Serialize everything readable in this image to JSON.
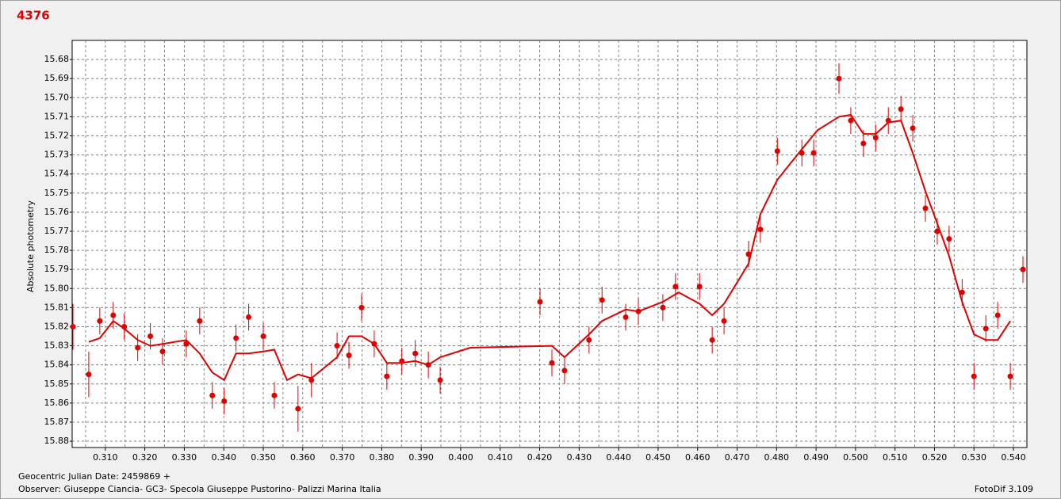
{
  "chart_data": {
    "type": "scatter",
    "title": "4376",
    "ylabel": "Absolute photometry",
    "xlabel": "Geocentric Julian Date: 2459869 +",
    "annotations": [
      "Observer: Giuseppe Ciancia- GC3- Specola Giuseppe Pustorino- Palizzi Marina Italia",
      "FotoDif 3.109"
    ],
    "xlim": [
      0.3016,
      0.5434
    ],
    "ylim": [
      15.67,
      15.8833
    ],
    "y_inverted": true,
    "grid": true,
    "xticks": [
      {
        "value": 0.31,
        "label": "0.310"
      },
      {
        "value": 0.32,
        "label": "0.320"
      },
      {
        "value": 0.33,
        "label": "0.330"
      },
      {
        "value": 0.34,
        "label": "0.340"
      },
      {
        "value": 0.35,
        "label": "0.350"
      },
      {
        "value": 0.36,
        "label": "0.360"
      },
      {
        "value": 0.37,
        "label": "0.370"
      },
      {
        "value": 0.38,
        "label": "0.380"
      },
      {
        "value": 0.39,
        "label": "0.390"
      },
      {
        "value": 0.4,
        "label": "0.400"
      },
      {
        "value": 0.41,
        "label": "0.410"
      },
      {
        "value": 0.42,
        "label": "0.420"
      },
      {
        "value": 0.43,
        "label": "0.430"
      },
      {
        "value": 0.44,
        "label": "0.440"
      },
      {
        "value": 0.45,
        "label": "0.450"
      },
      {
        "value": 0.46,
        "label": "0.460"
      },
      {
        "value": 0.47,
        "label": "0.470"
      },
      {
        "value": 0.48,
        "label": "0.480"
      },
      {
        "value": 0.49,
        "label": "0.490"
      },
      {
        "value": 0.5,
        "label": "0.500"
      },
      {
        "value": 0.51,
        "label": "0.510"
      },
      {
        "value": 0.52,
        "label": "0.520"
      },
      {
        "value": 0.53,
        "label": "0.530"
      },
      {
        "value": 0.54,
        "label": "0.540"
      }
    ],
    "yticks": [
      15.68,
      15.69,
      {
        "value": 15.7,
        "label": "15.70"
      },
      15.71,
      15.72,
      15.73,
      15.74,
      15.75,
      15.76,
      15.77,
      15.78,
      15.79,
      {
        "value": 15.8,
        "label": "15.80"
      },
      15.81,
      15.82,
      15.83,
      15.84,
      15.85,
      15.86,
      15.87,
      15.88
    ],
    "series": [
      {
        "type": "scatter",
        "color": "#e00000",
        "x": [
          0.3018,
          0.3058,
          0.3086,
          0.312,
          0.3148,
          0.3182,
          0.3214,
          0.3245,
          0.3305,
          0.3339,
          0.3371,
          0.3401,
          0.3431,
          0.3463,
          0.35,
          0.3528,
          0.3588,
          0.3622,
          0.3687,
          0.3717,
          0.3749,
          0.3781,
          0.3813,
          0.3851,
          0.3885,
          0.3918,
          0.3948,
          0.4201,
          0.4231,
          0.4263,
          0.4325,
          0.4358,
          0.4418,
          0.445,
          0.4512,
          0.4544,
          0.4605,
          0.4637,
          0.4667,
          0.4729,
          0.4759,
          0.4802,
          0.4864,
          0.4894,
          0.4958,
          0.4988,
          0.502,
          0.5051,
          0.5083,
          0.5115,
          0.5145,
          0.5177,
          0.5207,
          0.5237,
          0.527,
          0.53,
          0.533,
          0.536,
          0.5392,
          0.5424
        ],
        "values": [
          15.82,
          15.845,
          15.817,
          15.814,
          15.82,
          15.831,
          15.825,
          15.833,
          15.829,
          15.817,
          15.856,
          15.859,
          15.826,
          15.815,
          15.825,
          15.856,
          15.863,
          15.848,
          15.83,
          15.835,
          15.81,
          15.829,
          15.846,
          15.838,
          15.834,
          15.84,
          15.848,
          15.807,
          15.839,
          15.843,
          15.827,
          15.806,
          15.815,
          15.812,
          15.81,
          15.799,
          15.799,
          15.827,
          15.817,
          15.782,
          15.769,
          15.728,
          15.729,
          15.729,
          15.69,
          15.712,
          15.724,
          15.721,
          15.712,
          15.706,
          15.716,
          15.758,
          15.77,
          15.774,
          15.802,
          15.846,
          15.821,
          15.814,
          15.846,
          15.79
        ],
        "errors": [
          0.012,
          0.012,
          0.007,
          0.007,
          0.007,
          0.007,
          0.007,
          0.007,
          0.007,
          0.007,
          0.007,
          0.007,
          0.007,
          0.007,
          0.007,
          0.007,
          0.012,
          0.009,
          0.007,
          0.007,
          0.007,
          0.007,
          0.007,
          0.007,
          0.007,
          0.007,
          0.007,
          0.007,
          0.007,
          0.007,
          0.007,
          0.007,
          0.007,
          0.007,
          0.007,
          0.007,
          0.007,
          0.007,
          0.007,
          0.007,
          0.007,
          0.007,
          0.007,
          0.007,
          0.008,
          0.007,
          0.007,
          0.007,
          0.007,
          0.007,
          0.007,
          0.007,
          0.007,
          0.007,
          0.007,
          0.007,
          0.007,
          0.007,
          0.007,
          0.007
        ]
      },
      {
        "type": "line",
        "color": "#e00000",
        "x": [
          0.3058,
          0.3086,
          0.312,
          0.3148,
          0.3182,
          0.3214,
          0.3245,
          0.3305,
          0.3339,
          0.3371,
          0.3401,
          0.3431,
          0.3463,
          0.35,
          0.3528,
          0.356,
          0.3588,
          0.3622,
          0.3687,
          0.3717,
          0.3749,
          0.3781,
          0.3813,
          0.3851,
          0.3885,
          0.3918,
          0.3948,
          0.4024,
          0.4231,
          0.4263,
          0.4325,
          0.4358,
          0.4418,
          0.445,
          0.4512,
          0.4552,
          0.4605,
          0.4637,
          0.4667,
          0.4729,
          0.4759,
          0.4802,
          0.4864,
          0.4904,
          0.4958,
          0.4988,
          0.502,
          0.5051,
          0.5083,
          0.5115,
          0.5145,
          0.5177,
          0.5207,
          0.5237,
          0.527,
          0.53,
          0.533,
          0.536,
          0.5392
        ],
        "values": [
          15.828,
          15.826,
          15.817,
          15.821,
          15.827,
          15.83,
          15.829,
          15.827,
          15.834,
          15.844,
          15.848,
          15.834,
          15.834,
          15.833,
          15.832,
          15.848,
          15.845,
          15.847,
          15.836,
          15.825,
          15.825,
          15.829,
          15.839,
          15.839,
          15.838,
          15.84,
          15.836,
          15.831,
          15.83,
          15.836,
          15.824,
          15.817,
          15.811,
          15.812,
          15.807,
          15.802,
          15.808,
          15.814,
          15.808,
          15.787,
          15.761,
          15.743,
          15.727,
          15.717,
          15.71,
          15.709,
          15.719,
          15.719,
          15.713,
          15.712,
          15.729,
          15.749,
          15.766,
          15.783,
          15.807,
          15.824,
          15.827,
          15.827,
          15.817
        ]
      }
    ]
  }
}
